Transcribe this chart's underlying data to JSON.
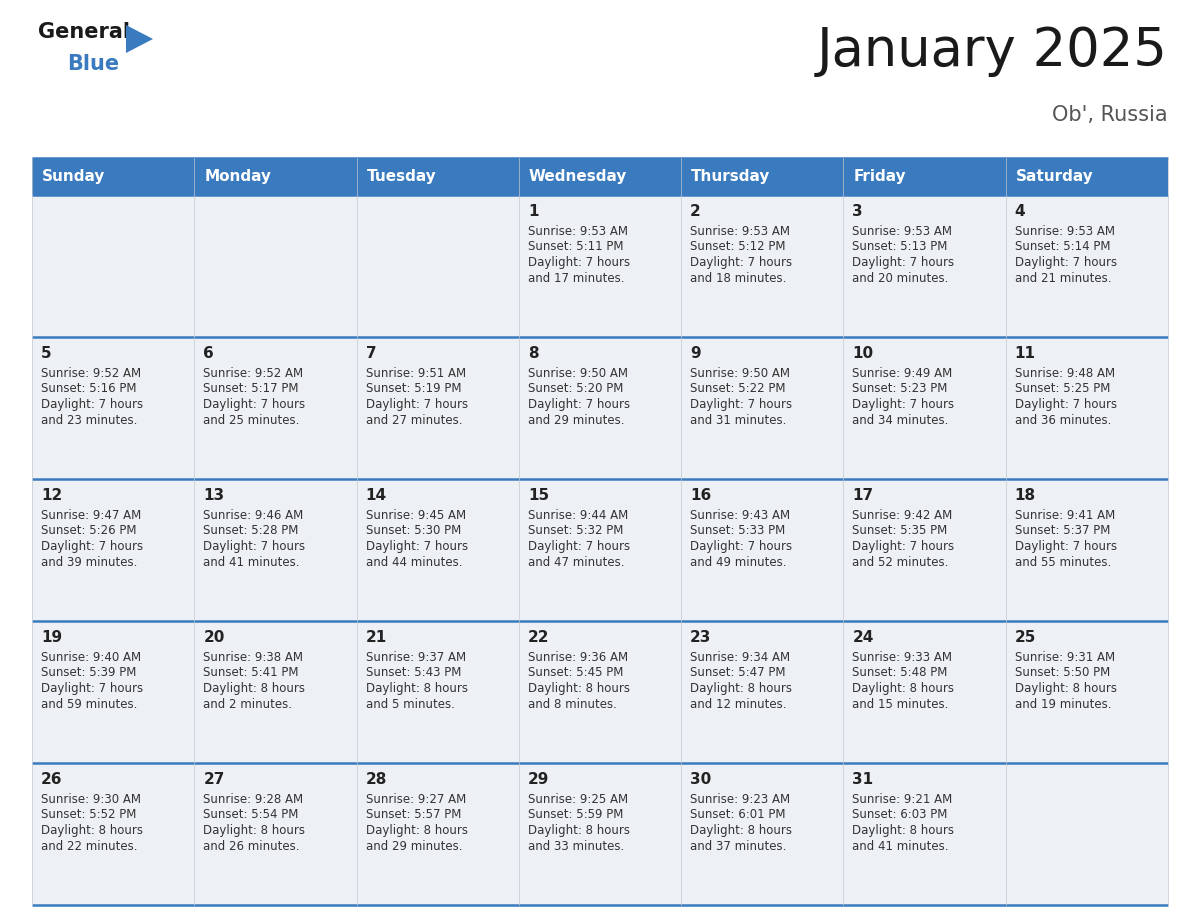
{
  "title": "January 2025",
  "subtitle": "Ob', Russia",
  "header_color": "#3a7bbf",
  "header_text_color": "#ffffff",
  "cell_bg": "#edf1f5",
  "separator_color": "#3a7bbf",
  "text_color": "#333333",
  "logo_general_color": "#1a1a1a",
  "logo_blue_color": "#3a7bbf",
  "day_names": [
    "Sunday",
    "Monday",
    "Tuesday",
    "Wednesday",
    "Thursday",
    "Friday",
    "Saturday"
  ],
  "days_data": [
    {
      "day": 1,
      "col": 3,
      "row": 0,
      "sunrise": "9:53 AM",
      "sunset": "5:11 PM",
      "dl1": "Daylight: 7 hours",
      "dl2": "and 17 minutes."
    },
    {
      "day": 2,
      "col": 4,
      "row": 0,
      "sunrise": "9:53 AM",
      "sunset": "5:12 PM",
      "dl1": "Daylight: 7 hours",
      "dl2": "and 18 minutes."
    },
    {
      "day": 3,
      "col": 5,
      "row": 0,
      "sunrise": "9:53 AM",
      "sunset": "5:13 PM",
      "dl1": "Daylight: 7 hours",
      "dl2": "and 20 minutes."
    },
    {
      "day": 4,
      "col": 6,
      "row": 0,
      "sunrise": "9:53 AM",
      "sunset": "5:14 PM",
      "dl1": "Daylight: 7 hours",
      "dl2": "and 21 minutes."
    },
    {
      "day": 5,
      "col": 0,
      "row": 1,
      "sunrise": "9:52 AM",
      "sunset": "5:16 PM",
      "dl1": "Daylight: 7 hours",
      "dl2": "and 23 minutes."
    },
    {
      "day": 6,
      "col": 1,
      "row": 1,
      "sunrise": "9:52 AM",
      "sunset": "5:17 PM",
      "dl1": "Daylight: 7 hours",
      "dl2": "and 25 minutes."
    },
    {
      "day": 7,
      "col": 2,
      "row": 1,
      "sunrise": "9:51 AM",
      "sunset": "5:19 PM",
      "dl1": "Daylight: 7 hours",
      "dl2": "and 27 minutes."
    },
    {
      "day": 8,
      "col": 3,
      "row": 1,
      "sunrise": "9:50 AM",
      "sunset": "5:20 PM",
      "dl1": "Daylight: 7 hours",
      "dl2": "and 29 minutes."
    },
    {
      "day": 9,
      "col": 4,
      "row": 1,
      "sunrise": "9:50 AM",
      "sunset": "5:22 PM",
      "dl1": "Daylight: 7 hours",
      "dl2": "and 31 minutes."
    },
    {
      "day": 10,
      "col": 5,
      "row": 1,
      "sunrise": "9:49 AM",
      "sunset": "5:23 PM",
      "dl1": "Daylight: 7 hours",
      "dl2": "and 34 minutes."
    },
    {
      "day": 11,
      "col": 6,
      "row": 1,
      "sunrise": "9:48 AM",
      "sunset": "5:25 PM",
      "dl1": "Daylight: 7 hours",
      "dl2": "and 36 minutes."
    },
    {
      "day": 12,
      "col": 0,
      "row": 2,
      "sunrise": "9:47 AM",
      "sunset": "5:26 PM",
      "dl1": "Daylight: 7 hours",
      "dl2": "and 39 minutes."
    },
    {
      "day": 13,
      "col": 1,
      "row": 2,
      "sunrise": "9:46 AM",
      "sunset": "5:28 PM",
      "dl1": "Daylight: 7 hours",
      "dl2": "and 41 minutes."
    },
    {
      "day": 14,
      "col": 2,
      "row": 2,
      "sunrise": "9:45 AM",
      "sunset": "5:30 PM",
      "dl1": "Daylight: 7 hours",
      "dl2": "and 44 minutes."
    },
    {
      "day": 15,
      "col": 3,
      "row": 2,
      "sunrise": "9:44 AM",
      "sunset": "5:32 PM",
      "dl1": "Daylight: 7 hours",
      "dl2": "and 47 minutes."
    },
    {
      "day": 16,
      "col": 4,
      "row": 2,
      "sunrise": "9:43 AM",
      "sunset": "5:33 PM",
      "dl1": "Daylight: 7 hours",
      "dl2": "and 49 minutes."
    },
    {
      "day": 17,
      "col": 5,
      "row": 2,
      "sunrise": "9:42 AM",
      "sunset": "5:35 PM",
      "dl1": "Daylight: 7 hours",
      "dl2": "and 52 minutes."
    },
    {
      "day": 18,
      "col": 6,
      "row": 2,
      "sunrise": "9:41 AM",
      "sunset": "5:37 PM",
      "dl1": "Daylight: 7 hours",
      "dl2": "and 55 minutes."
    },
    {
      "day": 19,
      "col": 0,
      "row": 3,
      "sunrise": "9:40 AM",
      "sunset": "5:39 PM",
      "dl1": "Daylight: 7 hours",
      "dl2": "and 59 minutes."
    },
    {
      "day": 20,
      "col": 1,
      "row": 3,
      "sunrise": "9:38 AM",
      "sunset": "5:41 PM",
      "dl1": "Daylight: 8 hours",
      "dl2": "and 2 minutes."
    },
    {
      "day": 21,
      "col": 2,
      "row": 3,
      "sunrise": "9:37 AM",
      "sunset": "5:43 PM",
      "dl1": "Daylight: 8 hours",
      "dl2": "and 5 minutes."
    },
    {
      "day": 22,
      "col": 3,
      "row": 3,
      "sunrise": "9:36 AM",
      "sunset": "5:45 PM",
      "dl1": "Daylight: 8 hours",
      "dl2": "and 8 minutes."
    },
    {
      "day": 23,
      "col": 4,
      "row": 3,
      "sunrise": "9:34 AM",
      "sunset": "5:47 PM",
      "dl1": "Daylight: 8 hours",
      "dl2": "and 12 minutes."
    },
    {
      "day": 24,
      "col": 5,
      "row": 3,
      "sunrise": "9:33 AM",
      "sunset": "5:48 PM",
      "dl1": "Daylight: 8 hours",
      "dl2": "and 15 minutes."
    },
    {
      "day": 25,
      "col": 6,
      "row": 3,
      "sunrise": "9:31 AM",
      "sunset": "5:50 PM",
      "dl1": "Daylight: 8 hours",
      "dl2": "and 19 minutes."
    },
    {
      "day": 26,
      "col": 0,
      "row": 4,
      "sunrise": "9:30 AM",
      "sunset": "5:52 PM",
      "dl1": "Daylight: 8 hours",
      "dl2": "and 22 minutes."
    },
    {
      "day": 27,
      "col": 1,
      "row": 4,
      "sunrise": "9:28 AM",
      "sunset": "5:54 PM",
      "dl1": "Daylight: 8 hours",
      "dl2": "and 26 minutes."
    },
    {
      "day": 28,
      "col": 2,
      "row": 4,
      "sunrise": "9:27 AM",
      "sunset": "5:57 PM",
      "dl1": "Daylight: 8 hours",
      "dl2": "and 29 minutes."
    },
    {
      "day": 29,
      "col": 3,
      "row": 4,
      "sunrise": "9:25 AM",
      "sunset": "5:59 PM",
      "dl1": "Daylight: 8 hours",
      "dl2": "and 33 minutes."
    },
    {
      "day": 30,
      "col": 4,
      "row": 4,
      "sunrise": "9:23 AM",
      "sunset": "6:01 PM",
      "dl1": "Daylight: 8 hours",
      "dl2": "and 37 minutes."
    },
    {
      "day": 31,
      "col": 5,
      "row": 4,
      "sunrise": "9:21 AM",
      "sunset": "6:03 PM",
      "dl1": "Daylight: 8 hours",
      "dl2": "and 41 minutes."
    }
  ],
  "num_rows": 5,
  "num_cols": 7,
  "title_fontsize": 38,
  "subtitle_fontsize": 15,
  "header_fontsize": 11,
  "day_num_fontsize": 11,
  "cell_text_fontsize": 8.5
}
